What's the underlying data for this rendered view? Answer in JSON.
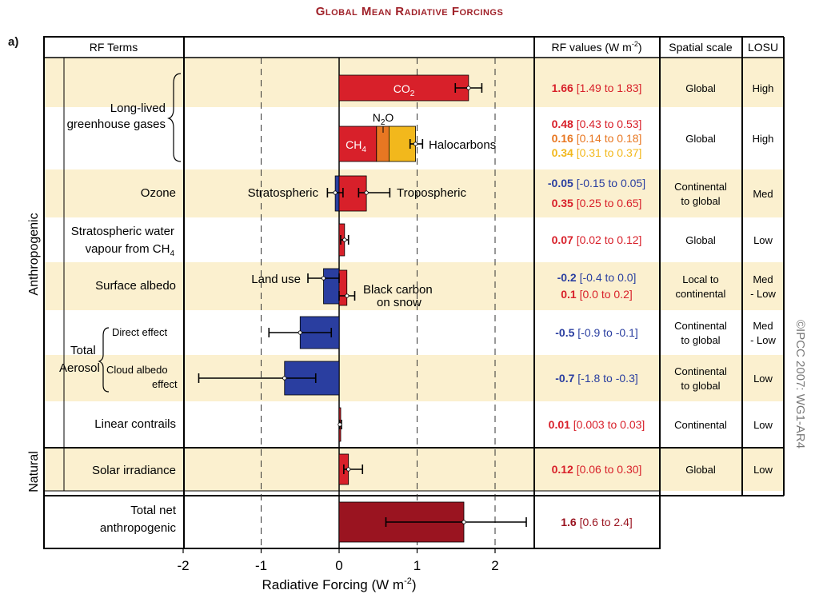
{
  "title": "Global Mean Radiative Forcings",
  "panel_label": "a)",
  "copyright": "©IPCC 2007: WG1-AR4",
  "headers": {
    "rf_terms": "RF Terms",
    "rf_values": "RF values (W m",
    "rf_values_sup": "-2",
    "rf_values_close": ")",
    "spatial_scale": "Spatial scale",
    "losu": "LOSU"
  },
  "groups": {
    "anthropogenic": "Anthropogenic",
    "natural": "Natural"
  },
  "row_labels": {
    "llghg_1": "Long-lived",
    "llghg_2": "greenhouse gases",
    "ozone": "Ozone",
    "stratwv_1": "Stratospheric water",
    "stratwv_2": "vapour from CH",
    "stratwv_sub": "4",
    "surface_albedo": "Surface albedo",
    "total_aerosol_1": "Total",
    "total_aerosol_2": "Aerosol",
    "direct_effect": "Direct effect",
    "cloud_albedo_1": "Cloud albedo",
    "cloud_albedo_2": "effect",
    "linear_contrails": "Linear contrails",
    "solar_irradiance": "Solar irradiance",
    "total_net_1": "Total net",
    "total_net_2": "anthropogenic"
  },
  "bar_labels": {
    "co2": "CO",
    "co2_sub": "2",
    "n2o": "N",
    "n2o_sub": "2",
    "n2o_end": "O",
    "ch4": "CH",
    "ch4_sub": "4",
    "halocarbons": "Halocarbons",
    "stratospheric": "Stratospheric",
    "tropospheric": "Tropospheric",
    "land_use": "Land use",
    "black_carbon_1": "Black carbon",
    "black_carbon_2": "on snow"
  },
  "table_rows": [
    {
      "values": [
        {
          "v": "1.66",
          "r": "[1.49 to 1.83]",
          "c": "#d8202a"
        }
      ],
      "scale": [
        "Global"
      ],
      "losu": [
        "High"
      ]
    },
    {
      "values": [
        {
          "v": "0.48",
          "r": "[0.43 to 0.53]",
          "c": "#d8202a"
        },
        {
          "v": "0.16",
          "r": "[0.14 to 0.18]",
          "c": "#e87722"
        },
        {
          "v": "0.34",
          "r": "[0.31 to 0.37]",
          "c": "#f2b81c"
        }
      ],
      "scale": [
        "Global"
      ],
      "losu": [
        "High"
      ]
    },
    {
      "values": [
        {
          "v": "-0.05",
          "r": "[-0.15 to 0.05]",
          "c": "#2a3ea0"
        },
        {
          "v": "0.35",
          "r": "[0.25 to 0.65]",
          "c": "#d8202a"
        }
      ],
      "scale": [
        "Continental",
        "to global"
      ],
      "losu": [
        "Med"
      ]
    },
    {
      "values": [
        {
          "v": "0.07",
          "r": "[0.02 to 0.12]",
          "c": "#d8202a"
        }
      ],
      "scale": [
        "Global"
      ],
      "losu": [
        "Low"
      ]
    },
    {
      "values": [
        {
          "v": "-0.2",
          "r": "[-0.4 to 0.0]",
          "c": "#2a3ea0"
        },
        {
          "v": "0.1",
          "r": "[0.0 to 0.2]",
          "c": "#d8202a"
        }
      ],
      "scale": [
        "Local to",
        "continental"
      ],
      "losu": [
        "Med",
        "- Low"
      ]
    },
    {
      "values": [
        {
          "v": "-0.5",
          "r": "[-0.9 to -0.1]",
          "c": "#2a3ea0"
        }
      ],
      "scale": [
        "Continental",
        "to global"
      ],
      "losu": [
        "Med",
        "- Low"
      ]
    },
    {
      "values": [
        {
          "v": "-0.7",
          "r": "[-1.8 to -0.3]",
          "c": "#2a3ea0"
        }
      ],
      "scale": [
        "Continental",
        "to global"
      ],
      "losu": [
        "Low"
      ]
    },
    {
      "values": [
        {
          "v": "0.01",
          "r": "[0.003 to 0.03]",
          "c": "#d8202a"
        }
      ],
      "scale": [
        "Continental"
      ],
      "losu": [
        "Low"
      ]
    },
    {
      "values": [
        {
          "v": "0.12",
          "r": "[0.06 to 0.30]",
          "c": "#d8202a"
        }
      ],
      "scale": [
        "Global"
      ],
      "losu": [
        "Low"
      ]
    },
    {
      "values": [
        {
          "v": "1.6",
          "r": "[0.6 to 2.4]",
          "c": "#9a1420"
        }
      ],
      "scale": [],
      "losu": []
    }
  ],
  "colors": {
    "row_shade": "#fbf0cf",
    "red": "#d8202a",
    "orange": "#e87722",
    "yellow": "#f2b81c",
    "blue": "#2a3ea0",
    "dark_red": "#9a1420",
    "title": "#a0222a"
  },
  "chart_data": {
    "type": "bar",
    "orientation": "horizontal",
    "xlabel": "Radiative Forcing  (W m",
    "xlabel_sup": "-2",
    "xlabel_close": ")",
    "xlim": [
      -2,
      2.5
    ],
    "xticks": [
      -2,
      -1,
      0,
      1,
      2
    ],
    "xtick_labels": [
      "-2",
      "-1",
      "0",
      "1",
      "2"
    ],
    "gridlines": "dashed at -1, 1, 2",
    "bars": [
      {
        "name": "CO2",
        "row": 0,
        "start": 0,
        "value": 1.66,
        "low": 1.49,
        "high": 1.83,
        "color": "#d8202a"
      },
      {
        "name": "CH4",
        "row": 1,
        "start": 0,
        "value": 0.48,
        "color": "#d8202a"
      },
      {
        "name": "N2O",
        "row": 1,
        "start": 0.48,
        "value": 0.16,
        "color": "#e87722"
      },
      {
        "name": "Halocarbons",
        "row": 1,
        "start": 0.64,
        "value": 0.34,
        "low": 0.91,
        "high": 1.07,
        "color": "#f2b81c"
      },
      {
        "name": "Stratospheric ozone",
        "row": 2,
        "start": 0,
        "value": -0.05,
        "low": -0.15,
        "high": 0.05,
        "color": "#2a3ea0",
        "sub": "upper"
      },
      {
        "name": "Tropospheric ozone",
        "row": 2,
        "start": 0,
        "value": 0.35,
        "low": 0.25,
        "high": 0.65,
        "color": "#d8202a",
        "sub": "lower"
      },
      {
        "name": "Stratospheric water vapour",
        "row": 3,
        "start": 0,
        "value": 0.07,
        "low": 0.02,
        "high": 0.12,
        "color": "#d8202a"
      },
      {
        "name": "Land use",
        "row": 4,
        "start": 0,
        "value": -0.2,
        "low": -0.4,
        "high": 0.0,
        "color": "#2a3ea0",
        "sub": "upper"
      },
      {
        "name": "Black carbon on snow",
        "row": 4,
        "start": 0,
        "value": 0.1,
        "low": 0.0,
        "high": 0.2,
        "color": "#d8202a",
        "sub": "lower"
      },
      {
        "name": "Aerosol direct effect",
        "row": 5,
        "start": 0,
        "value": -0.5,
        "low": -0.9,
        "high": -0.1,
        "color": "#2a3ea0"
      },
      {
        "name": "Cloud albedo effect",
        "row": 6,
        "start": 0,
        "value": -0.7,
        "low": -1.8,
        "high": -0.3,
        "color": "#2a3ea0"
      },
      {
        "name": "Linear contrails",
        "row": 7,
        "start": 0,
        "value": 0.01,
        "low": 0.003,
        "high": 0.03,
        "color": "#d8202a"
      },
      {
        "name": "Solar irradiance",
        "row": 8,
        "start": 0,
        "value": 0.12,
        "low": 0.06,
        "high": 0.3,
        "color": "#d8202a"
      },
      {
        "name": "Total net anthropogenic",
        "row": 9,
        "start": 0,
        "value": 1.6,
        "low": 0.6,
        "high": 2.4,
        "color": "#9a1420"
      }
    ]
  }
}
